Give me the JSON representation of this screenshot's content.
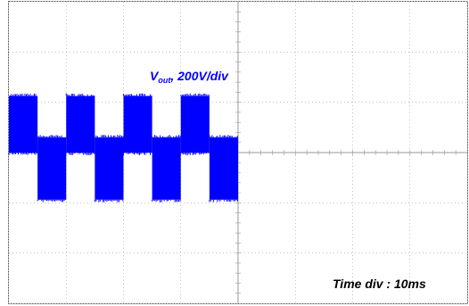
{
  "chart_data": {
    "type": "line",
    "title": "",
    "xlabel": "",
    "ylabel": "",
    "annotations": {
      "signal_label_main": "V",
      "signal_label_sub": "out",
      "signal_label_rest": ", 200V/div",
      "time_div": "Time div : 10ms"
    },
    "grid": true,
    "xlim": [
      0,
      80
    ],
    "ylim": [
      -800,
      800
    ],
    "x_unit": "ms",
    "y_unit": "V",
    "series": [
      {
        "color": "#0000ff",
        "waveform": "square-wave with high-frequency switching band",
        "segments": [
          {
            "x_start": 0,
            "x_end": 5,
            "level_low": 0,
            "level_high": 300
          },
          {
            "x_start": 5,
            "x_end": 10,
            "level_low": -250,
            "level_high": 80
          },
          {
            "x_start": 10,
            "x_end": 15,
            "level_low": 0,
            "level_high": 300
          },
          {
            "x_start": 15,
            "x_end": 20,
            "level_low": -250,
            "level_high": 80
          },
          {
            "x_start": 20,
            "x_end": 25,
            "level_low": 0,
            "level_high": 300
          },
          {
            "x_start": 25,
            "x_end": 30,
            "level_low": -250,
            "level_high": 80
          },
          {
            "x_start": 30,
            "x_end": 35,
            "level_low": 0,
            "level_high": 300
          },
          {
            "x_start": 35,
            "x_end": 40,
            "level_low": -250,
            "level_high": 80
          }
        ]
      }
    ]
  },
  "colors": {
    "trace": "#0000ff",
    "grid": "#9a9a9a",
    "border": "#555555",
    "label": "#0000ff",
    "time_label": "#000000"
  }
}
